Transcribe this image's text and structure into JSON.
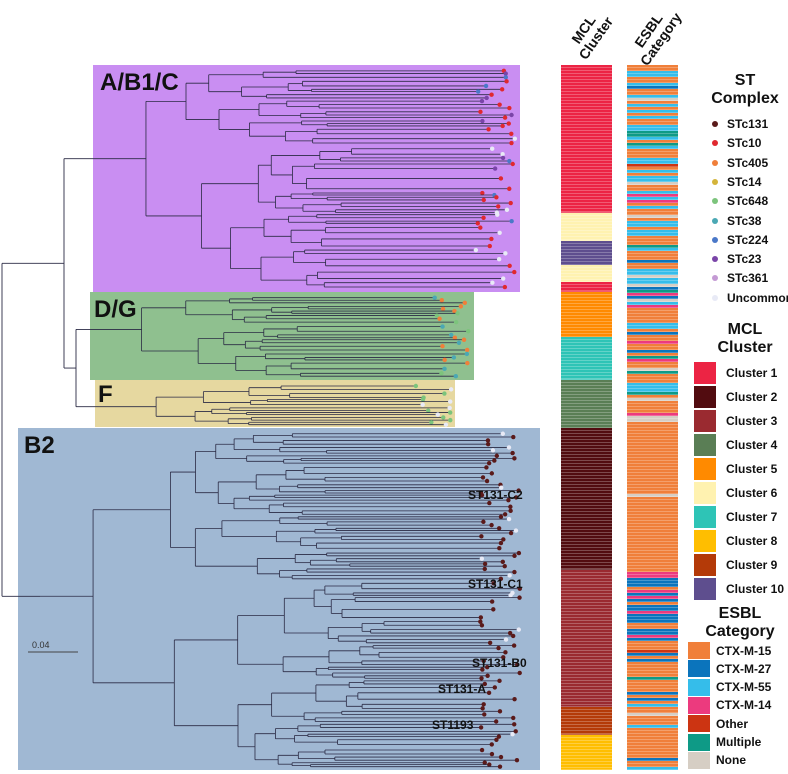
{
  "clades": [
    {
      "label": "A/B1/C",
      "color": "#c98ef2"
    },
    {
      "label": "D/G",
      "color": "#8fc08f"
    },
    {
      "label": "F",
      "color": "#e6d8a0"
    },
    {
      "label": "B2",
      "color": "#a0b8d3"
    }
  ],
  "st_labels": [
    "ST131-C2",
    "ST131-C1",
    "ST131-B0",
    "ST131-A",
    "ST1193"
  ],
  "scale_bar": "0.04",
  "columns": {
    "mcl": "MCL Cluster",
    "esbl": "ESBL Category"
  },
  "st_complex": {
    "title": "ST Complex",
    "items": [
      {
        "label": "STc131",
        "color": "#5a1a1a"
      },
      {
        "label": "STc10",
        "color": "#e0282f"
      },
      {
        "label": "STc405",
        "color": "#f07f3a"
      },
      {
        "label": "STc14",
        "color": "#d4b43a"
      },
      {
        "label": "STc648",
        "color": "#7cc47c"
      },
      {
        "label": "STc38",
        "color": "#4aa8b4"
      },
      {
        "label": "STc224",
        "color": "#4a78c8"
      },
      {
        "label": "STc23",
        "color": "#7a45a8"
      },
      {
        "label": "STc361",
        "color": "#c49ad4"
      },
      {
        "label": "Uncommon",
        "color": "#e8eaf6"
      }
    ]
  },
  "mcl_cluster": {
    "title": "MCL Cluster",
    "items": [
      {
        "label": "Cluster 1",
        "color": "#ec2444"
      },
      {
        "label": "Cluster 2",
        "color": "#520c10"
      },
      {
        "label": "Cluster 3",
        "color": "#9a2a30"
      },
      {
        "label": "Cluster 4",
        "color": "#5a7e55"
      },
      {
        "label": "Cluster 5",
        "color": "#ff8a00"
      },
      {
        "label": "Cluster 6",
        "color": "#fff2b0"
      },
      {
        "label": "Cluster 7",
        "color": "#2ec4b6"
      },
      {
        "label": "Cluster 8",
        "color": "#ffbe00"
      },
      {
        "label": "Cluster 9",
        "color": "#b43a08"
      },
      {
        "label": "Cluster 10",
        "color": "#5e4e8e"
      }
    ]
  },
  "esbl_category": {
    "title": "ESBL Category",
    "items": [
      {
        "label": "CTX-M-15",
        "color": "#f07f3a"
      },
      {
        "label": "CTX-M-27",
        "color": "#0b74bc"
      },
      {
        "label": "CTX-M-55",
        "color": "#35bdea"
      },
      {
        "label": "CTX-M-14",
        "color": "#ec3a7e"
      },
      {
        "label": "Other",
        "color": "#cc3412"
      },
      {
        "label": "Multiple",
        "color": "#0e9a86"
      },
      {
        "label": "None",
        "color": "#d6cec4"
      }
    ]
  }
}
